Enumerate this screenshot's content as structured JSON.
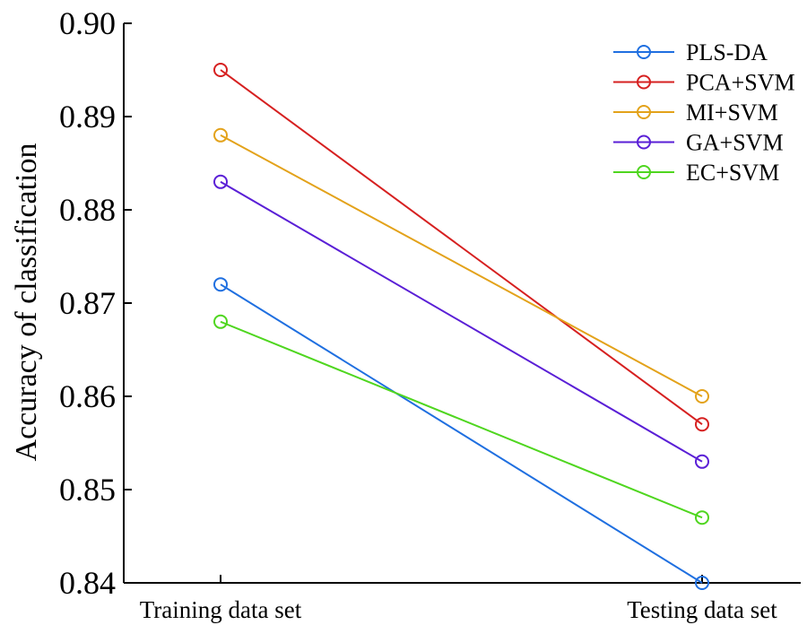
{
  "chart_data": {
    "type": "line",
    "title": "",
    "xlabel": "",
    "ylabel": "Accuracy of classification",
    "categories": [
      "Training data set",
      "Testing data set"
    ],
    "ylim": [
      0.84,
      0.9
    ],
    "yticks": [
      "0.84",
      "0.85",
      "0.86",
      "0.87",
      "0.88",
      "0.89",
      "0.90"
    ],
    "grid": false,
    "legend_position": "top-right",
    "series": [
      {
        "name": "PLS-DA",
        "color": "#1f6fe0",
        "values": [
          0.872,
          0.84
        ]
      },
      {
        "name": "PCA+SVM",
        "color": "#d62020",
        "values": [
          0.895,
          0.857
        ]
      },
      {
        "name": "MI+SVM",
        "color": "#e3a21a",
        "values": [
          0.888,
          0.86
        ]
      },
      {
        "name": "GA+SVM",
        "color": "#5a1fd6",
        "values": [
          0.883,
          0.853
        ]
      },
      {
        "name": "EC+SVM",
        "color": "#4fd61f",
        "values": [
          0.868,
          0.847
        ]
      }
    ]
  }
}
